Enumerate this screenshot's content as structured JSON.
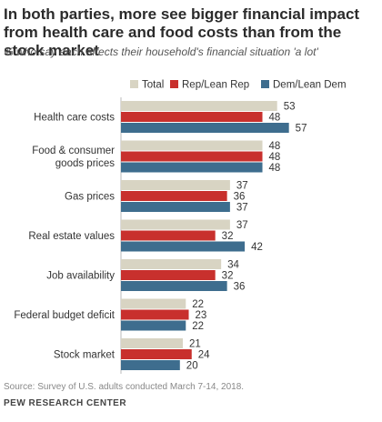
{
  "header": {
    "title": "In both parties, more see bigger financial impact from health care and food costs than from the stock market",
    "subtitle": "% who say each affects their household's financial situation 'a lot'"
  },
  "footer": {
    "source": "Source: Survey of U.S. adults conducted March 7-14, 2018.",
    "org": "PEW RESEARCH CENTER"
  },
  "colors": {
    "Total": "#d8d4c3",
    "Rep/Lean Rep": "#c8302d",
    "Dem/Lean Dem": "#3e6d8e"
  },
  "chart_data": {
    "type": "bar",
    "orientation": "horizontal",
    "title": "In both parties, more see bigger financial impact from health care and food costs than from the stock market",
    "subtitle": "% who say each affects their household's financial situation 'a lot'",
    "categories": [
      [
        "Health care costs"
      ],
      [
        "Food & consumer",
        "goods prices"
      ],
      [
        "Gas prices"
      ],
      [
        "Real estate values"
      ],
      [
        "Job availability"
      ],
      [
        "Federal budget deficit"
      ],
      [
        "Stock market"
      ]
    ],
    "series": [
      {
        "name": "Total",
        "values": [
          53,
          48,
          37,
          37,
          34,
          22,
          21
        ]
      },
      {
        "name": "Rep/Lean Rep",
        "values": [
          48,
          48,
          36,
          32,
          32,
          23,
          24
        ]
      },
      {
        "name": "Dem/Lean Dem",
        "values": [
          57,
          48,
          37,
          42,
          36,
          22,
          20
        ]
      }
    ],
    "legend": "top",
    "grid": false,
    "xlim": [
      0,
      60
    ]
  }
}
